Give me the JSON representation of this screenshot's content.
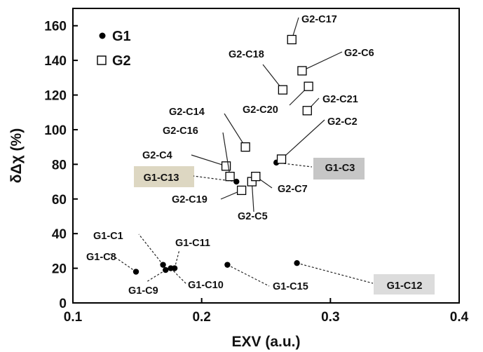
{
  "chart_data": {
    "type": "scatter",
    "xlabel": "EXV (a.u.)",
    "ylabel": "δΔχ (%)",
    "xlim": [
      0.1,
      0.4
    ],
    "ylim": [
      0,
      170
    ],
    "x_ticks": [
      "0.1",
      "0.2",
      "0.3",
      "0.4"
    ],
    "y_ticks": [
      "0",
      "20",
      "40",
      "60",
      "80",
      "100",
      "120",
      "140",
      "160"
    ],
    "legend_position": "top-left",
    "grid": false,
    "series": [
      {
        "name": "G1",
        "marker": "filled-circle",
        "color": "#000000",
        "points": [
          {
            "label": "G1-C1",
            "x": 0.17,
            "y": 22
          },
          {
            "label": "G1-C3",
            "x": 0.258,
            "y": 81
          },
          {
            "label": "G1-C8",
            "x": 0.149,
            "y": 18
          },
          {
            "label": "G1-C9",
            "x": 0.172,
            "y": 19
          },
          {
            "label": "G1-C10",
            "x": 0.176,
            "y": 20
          },
          {
            "label": "G1-C11",
            "x": 0.179,
            "y": 20
          },
          {
            "label": "G1-C12",
            "x": 0.274,
            "y": 23
          },
          {
            "label": "G1-C13",
            "x": 0.227,
            "y": 70
          },
          {
            "label": "G1-C15",
            "x": 0.22,
            "y": 22
          }
        ]
      },
      {
        "name": "G2",
        "marker": "open-square",
        "color": "#000000",
        "points": [
          {
            "label": "G2-C2",
            "x": 0.262,
            "y": 83
          },
          {
            "label": "G2-C4",
            "x": 0.219,
            "y": 79
          },
          {
            "label": "G2-C5",
            "x": 0.239,
            "y": 70
          },
          {
            "label": "G2-C6",
            "x": 0.278,
            "y": 134
          },
          {
            "label": "G2-C7",
            "x": 0.242,
            "y": 73
          },
          {
            "label": "G2-C14",
            "x": 0.234,
            "y": 90
          },
          {
            "label": "G2-C16",
            "x": 0.222,
            "y": 73
          },
          {
            "label": "G2-C17",
            "x": 0.27,
            "y": 152
          },
          {
            "label": "G2-C18",
            "x": 0.263,
            "y": 123
          },
          {
            "label": "G2-C19",
            "x": 0.231,
            "y": 65
          },
          {
            "label": "G2-C20",
            "x": 0.283,
            "y": 125
          },
          {
            "label": "G2-C21",
            "x": 0.282,
            "y": 111
          }
        ]
      }
    ],
    "highlighted_labels": {
      "G1-C13": "#ddd7c2",
      "G1-C3": "#c6c6c6",
      "G1-C12": "#dcdcdc"
    }
  }
}
